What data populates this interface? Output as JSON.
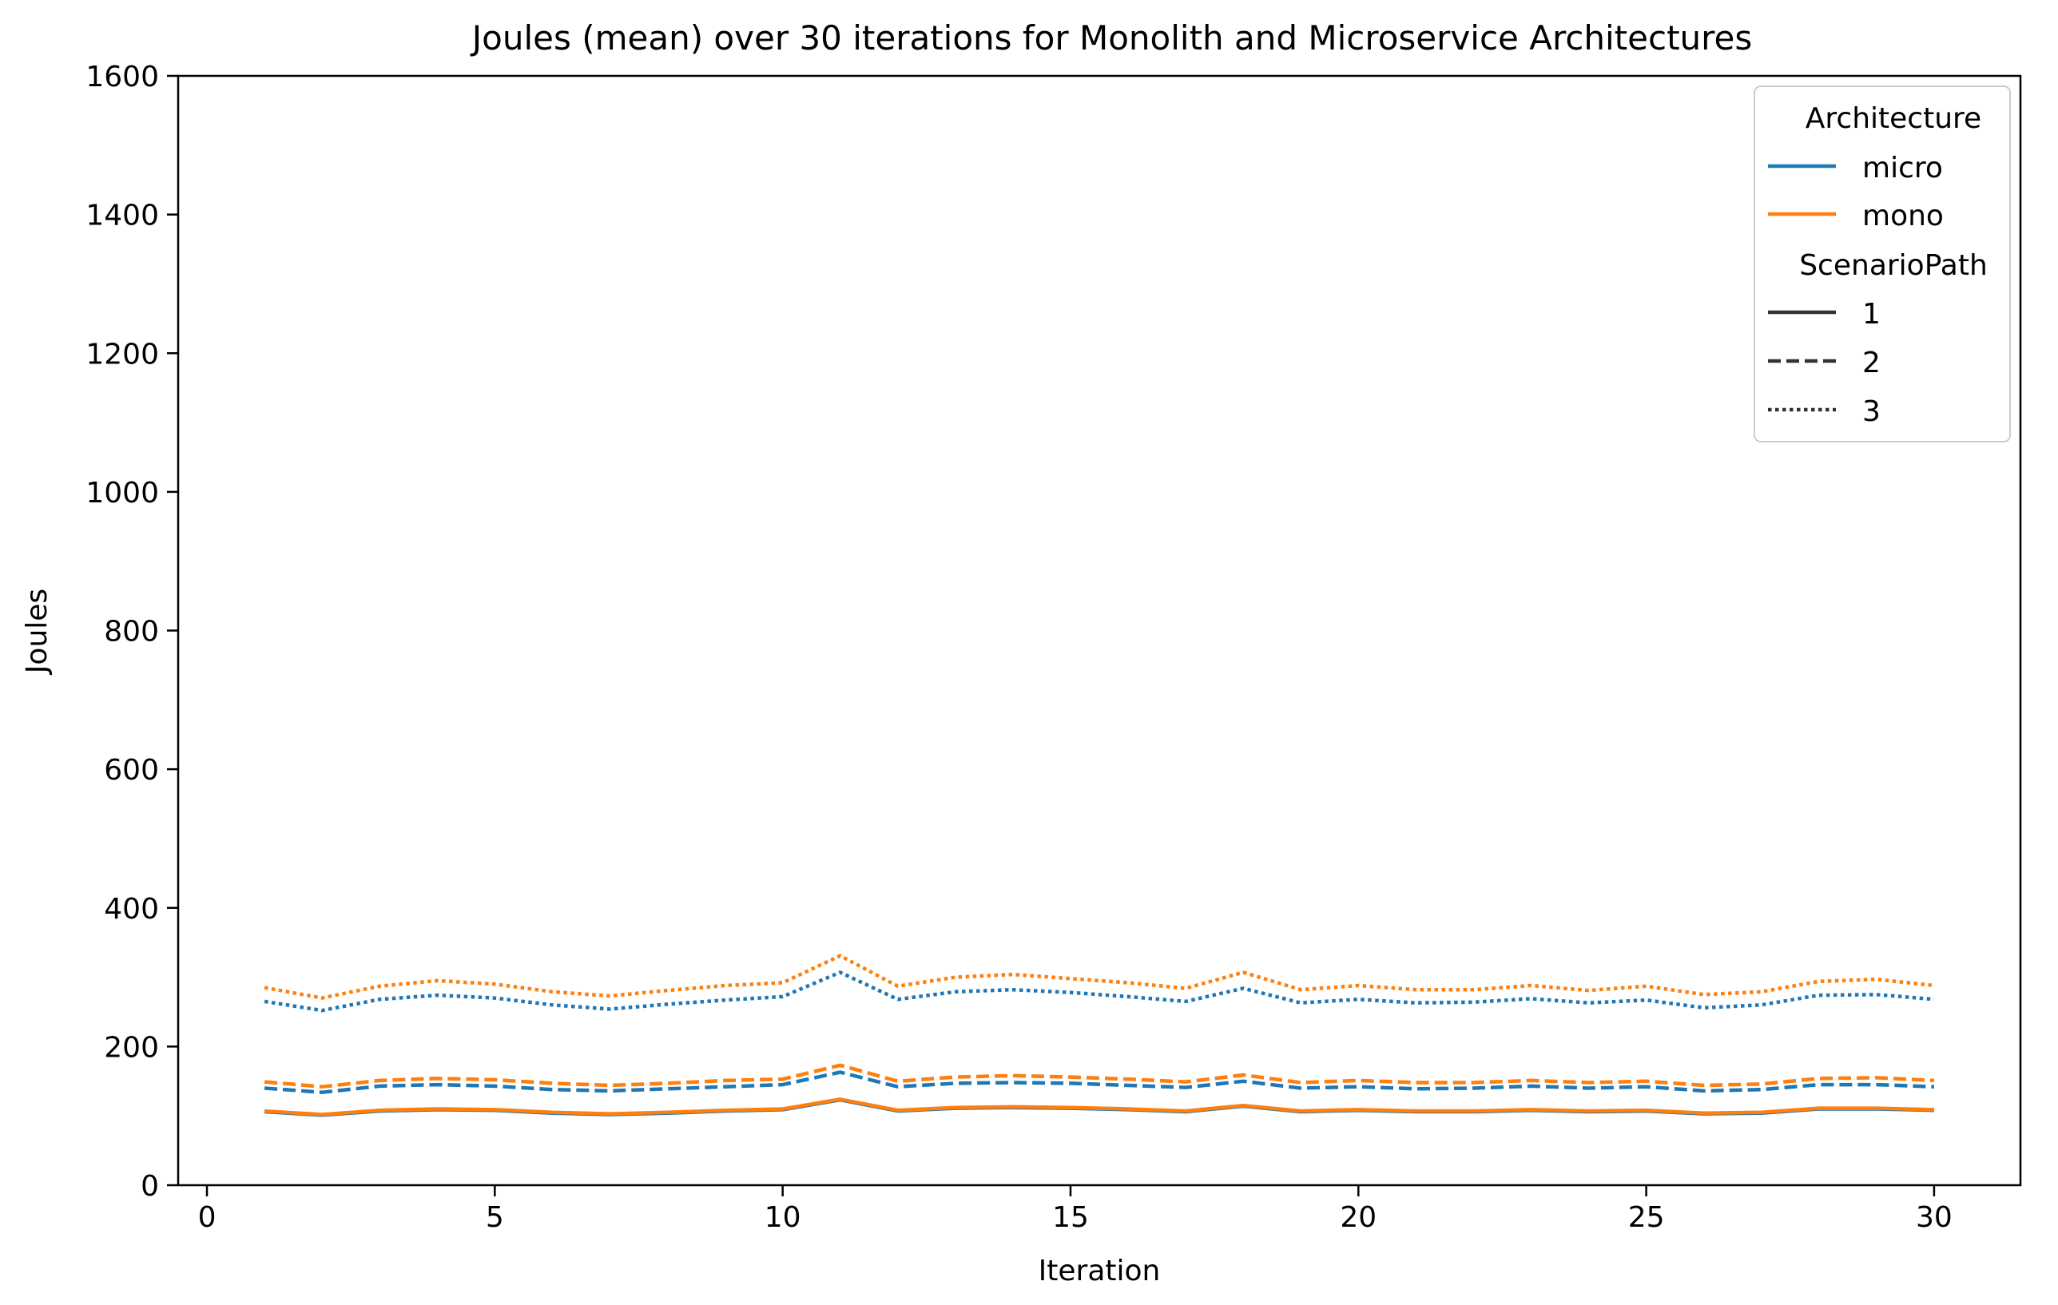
{
  "chart_data": {
    "type": "line",
    "title": "Joules (mean) over 30 iterations for Monolith and Microservice Architectures",
    "xlabel": "Iteration",
    "ylabel": "Joules",
    "xlim": [
      -0.5,
      31.5
    ],
    "ylim": [
      0,
      1600
    ],
    "xticks": [
      0,
      5,
      10,
      15,
      20,
      25,
      30
    ],
    "yticks": [
      0,
      200,
      400,
      600,
      800,
      1000,
      1200,
      1400,
      1600
    ],
    "grid": false,
    "legend_position": "top-right",
    "legend": {
      "hue_title": "Architecture",
      "hue_entries": [
        {
          "label": "micro",
          "color": "#1f77b4"
        },
        {
          "label": "mono",
          "color": "#ff7f0e"
        }
      ],
      "style_title": "ScenarioPath",
      "style_entries": [
        {
          "label": "1",
          "dash": "solid"
        },
        {
          "label": "2",
          "dash": "dashed"
        },
        {
          "label": "3",
          "dash": "dotted"
        }
      ]
    },
    "x": [
      1,
      2,
      3,
      4,
      5,
      6,
      7,
      8,
      9,
      10,
      11,
      12,
      13,
      14,
      15,
      16,
      17,
      18,
      19,
      20,
      21,
      22,
      23,
      24,
      25,
      26,
      27,
      28,
      29,
      30
    ],
    "series": [
      {
        "architecture": "micro",
        "scenario": "1",
        "color": "#1f77b4",
        "dash": "solid",
        "values": [
          106,
          101,
          107,
          109,
          108,
          104,
          102,
          104,
          107,
          109,
          123,
          107,
          111,
          112,
          111,
          109,
          106,
          114,
          106,
          108,
          106,
          106,
          108,
          106,
          107,
          103,
          104,
          110,
          110,
          108
        ]
      },
      {
        "architecture": "mono",
        "scenario": "1",
        "color": "#ff7f0e",
        "dash": "solid",
        "values": [
          107,
          102,
          108,
          110,
          109,
          105,
          103,
          105,
          108,
          110,
          124,
          108,
          112,
          113,
          112,
          110,
          107,
          115,
          107,
          109,
          107,
          107,
          109,
          107,
          108,
          104,
          105,
          111,
          111,
          109
        ]
      },
      {
        "architecture": "micro",
        "scenario": "2",
        "color": "#1f77b4",
        "dash": "dashed",
        "values": [
          140,
          134,
          143,
          145,
          143,
          138,
          136,
          139,
          142,
          145,
          163,
          142,
          147,
          148,
          147,
          144,
          141,
          150,
          140,
          142,
          139,
          140,
          143,
          140,
          142,
          136,
          138,
          145,
          145,
          142
        ]
      },
      {
        "architecture": "mono",
        "scenario": "2",
        "color": "#ff7f0e",
        "dash": "dashed",
        "values": [
          149,
          142,
          151,
          154,
          152,
          147,
          144,
          147,
          151,
          153,
          173,
          150,
          156,
          158,
          156,
          153,
          149,
          159,
          148,
          151,
          148,
          148,
          151,
          148,
          150,
          144,
          146,
          154,
          155,
          151
        ]
      },
      {
        "architecture": "micro",
        "scenario": "3",
        "color": "#1f77b4",
        "dash": "dotted",
        "values": [
          265,
          252,
          268,
          274,
          270,
          260,
          254,
          261,
          267,
          272,
          307,
          268,
          279,
          282,
          278,
          272,
          265,
          284,
          263,
          268,
          263,
          264,
          269,
          263,
          267,
          256,
          260,
          274,
          275,
          268
        ]
      },
      {
        "architecture": "mono",
        "scenario": "3",
        "color": "#ff7f0e",
        "dash": "dotted",
        "values": [
          285,
          270,
          287,
          295,
          290,
          279,
          273,
          281,
          288,
          292,
          331,
          287,
          300,
          304,
          298,
          292,
          284,
          307,
          282,
          288,
          282,
          282,
          288,
          281,
          287,
          275,
          279,
          294,
          297,
          288
        ]
      }
    ]
  }
}
